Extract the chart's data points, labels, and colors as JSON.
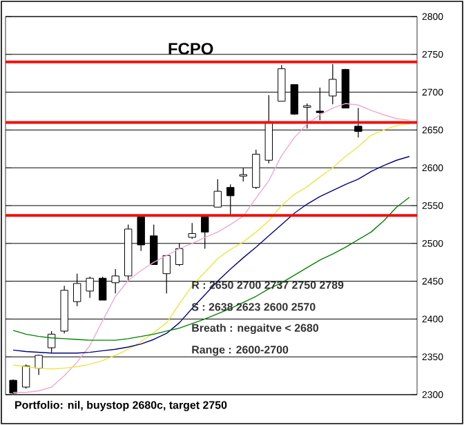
{
  "chart_data": {
    "type": "candlestick",
    "title": "FCPO",
    "categories": [
      null,
      null,
      null,
      null,
      null,
      null,
      null,
      null,
      null,
      null,
      null,
      null,
      null,
      null,
      null,
      null,
      null,
      null,
      null,
      null,
      null,
      null,
      null,
      null,
      null,
      null,
      null,
      null,
      null,
      null,
      null,
      null
    ],
    "ohlc": [
      [
        2319,
        2320,
        2301,
        2302
      ],
      [
        2310,
        2340,
        2308,
        2338
      ],
      [
        2335,
        2353,
        2326,
        2352
      ],
      [
        2362,
        2384,
        2356,
        2380
      ],
      [
        2384,
        2444,
        2381,
        2438
      ],
      [
        2423,
        2460,
        2417,
        2447
      ],
      [
        2437,
        2456,
        2428,
        2454
      ],
      [
        2454,
        2456,
        2425,
        2425
      ],
      [
        2448,
        2466,
        2434,
        2457
      ],
      [
        2457,
        2525,
        2451,
        2519
      ],
      [
        2535,
        2536,
        2490,
        2498
      ],
      [
        2510,
        2525,
        2472,
        2472
      ],
      [
        2460,
        2484,
        2434,
        2484
      ],
      [
        2472,
        2500,
        2470,
        2493
      ],
      [
        2508,
        2527,
        2506,
        2513
      ],
      [
        2535,
        2535,
        2493,
        2515
      ],
      [
        2548,
        2585,
        2548,
        2569
      ],
      [
        2574,
        2578,
        2536,
        2563
      ],
      [
        2589,
        2600,
        2582,
        2591
      ],
      [
        2574,
        2624,
        2572,
        2618
      ],
      [
        2610,
        2696,
        2606,
        2661
      ],
      [
        2688,
        2736,
        2688,
        2731
      ],
      [
        2710,
        2710,
        2670,
        2671
      ],
      [
        2680,
        2685,
        2652,
        2682
      ],
      [
        2675,
        2706,
        2663,
        2673
      ],
      [
        2695,
        2737,
        2684,
        2717
      ],
      [
        2730,
        2731,
        2679,
        2679
      ],
      [
        2655,
        2679,
        2640,
        2648
      ],
      null,
      null,
      null,
      null
    ],
    "series": [
      {
        "type": "line",
        "color": "#f0a8d0",
        "values": [
          2303,
          2303,
          2305,
          2310,
          2325,
          2343,
          2365,
          2398,
          2430,
          2451,
          2464,
          2475,
          2484,
          2493,
          2500,
          2508,
          2515,
          2525,
          2536,
          2560,
          2583,
          2616,
          2640,
          2658,
          2670,
          2679,
          2685,
          2683,
          2676,
          2670,
          2665,
          2663
        ]
      },
      {
        "type": "line",
        "color": "#e8e840",
        "values": [
          2339,
          2337,
          2335,
          2334,
          2335,
          2337,
          2340,
          2345,
          2352,
          2360,
          2370,
          2382,
          2395,
          2420,
          2444,
          2462,
          2480,
          2492,
          2502,
          2515,
          2530,
          2550,
          2565,
          2575,
          2588,
          2600,
          2615,
          2628,
          2643,
          2650,
          2656,
          2658
        ]
      },
      {
        "type": "line",
        "color": "#000080",
        "values": [
          2359,
          2357,
          2356,
          2355,
          2355,
          2355,
          2356,
          2358,
          2360,
          2363,
          2367,
          2373,
          2381,
          2395,
          2414,
          2432,
          2450,
          2466,
          2481,
          2495,
          2510,
          2525,
          2540,
          2552,
          2562,
          2570,
          2578,
          2585,
          2595,
          2603,
          2610,
          2615
        ]
      },
      {
        "type": "line",
        "color": "#008000",
        "values": [
          2385,
          2380,
          2377,
          2375,
          2374,
          2373,
          2372,
          2372,
          2372,
          2374,
          2377,
          2380,
          2384,
          2388,
          2394,
          2400,
          2407,
          2414,
          2422,
          2430,
          2440,
          2448,
          2458,
          2468,
          2478,
          2486,
          2495,
          2505,
          2515,
          2530,
          2548,
          2561
        ]
      }
    ],
    "ylim": [
      2300,
      2800
    ],
    "yticks": [
      2300,
      2350,
      2400,
      2450,
      2500,
      2550,
      2600,
      2650,
      2700,
      2750,
      2800
    ],
    "grid": "y",
    "ref_lines": [
      {
        "axis": "y",
        "value": 2740,
        "color": "#ee1111"
      },
      {
        "axis": "y",
        "value": 2660,
        "color": "#ee1111"
      },
      {
        "axis": "y",
        "value": 2537,
        "color": "#ee1111"
      }
    ],
    "annotations": [
      "R :  2650   2700   2737  2750  2789",
      "S : 2638   2623   2600  2570",
      "Breath : negaitve < 2680",
      "Range  :  2600-2700",
      "Portfolio:  nil, buystop 2680c, target 2750"
    ]
  }
}
